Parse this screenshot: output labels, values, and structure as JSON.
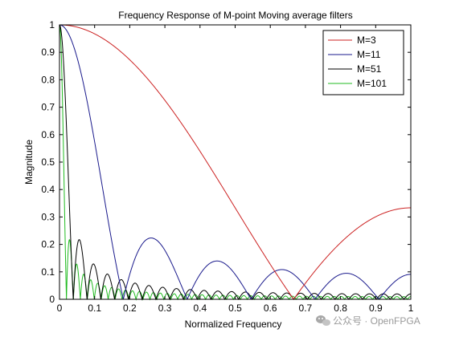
{
  "chart_data": {
    "type": "line",
    "title": "Frequency Response of M-point Moving average filters",
    "xlabel": "Normalized Frequency",
    "ylabel": "Magnitude",
    "xlim": [
      0,
      1
    ],
    "ylim": [
      0,
      1
    ],
    "xticks": [
      0,
      0.1,
      0.2,
      0.3,
      0.4,
      0.5,
      0.6,
      0.7,
      0.8,
      0.9,
      1
    ],
    "xtick_labels": [
      "0",
      "0.1",
      "0.2",
      "0.3",
      "0.4",
      "0.5",
      "0.6",
      "0.7",
      "0.8",
      "0.9",
      "1"
    ],
    "yticks": [
      0,
      0.1,
      0.2,
      0.3,
      0.4,
      0.5,
      0.6,
      0.7,
      0.8,
      0.9,
      1
    ],
    "ytick_labels": [
      "0",
      "0.1",
      "0.2",
      "0.3",
      "0.4",
      "0.5",
      "0.6",
      "0.7",
      "0.8",
      "0.9",
      "1"
    ],
    "grid": false,
    "legend_position": "top-right",
    "series": [
      {
        "name": "M=3",
        "M": 3,
        "color": "#cc2222",
        "x": [
          0,
          0.1,
          0.2,
          0.3,
          0.4,
          0.5,
          0.6,
          0.667,
          0.7,
          0.8,
          0.9,
          1
        ],
        "values": [
          1,
          0.97,
          0.87,
          0.73,
          0.54,
          0.33,
          0.13,
          0,
          0.06,
          0.21,
          0.3,
          0.33
        ]
      },
      {
        "name": "M=11",
        "M": 11,
        "color": "#1a1a8c",
        "x": [
          0,
          0.05,
          0.1,
          0.15,
          0.182,
          0.26,
          0.364,
          0.45,
          0.545,
          0.64,
          0.727,
          0.82,
          0.909,
          1
        ],
        "values": [
          1,
          0.88,
          0.57,
          0.18,
          0,
          0.22,
          0,
          0.14,
          0,
          0.1,
          0,
          0.095,
          0,
          0.091
        ]
      },
      {
        "name": "M=51",
        "M": 51,
        "color": "#000000",
        "x": [
          0,
          0.02,
          0.039,
          0.059,
          0.078,
          0.098,
          0.118,
          0.137,
          0.157,
          0.176,
          0.5,
          1
        ],
        "values": [
          1,
          0.42,
          0,
          0.22,
          0,
          0.13,
          0,
          0.1,
          0,
          0.07,
          0.02,
          0.0196
        ]
      },
      {
        "name": "M=101",
        "M": 101,
        "color": "#22bb22",
        "x": [
          0,
          0.01,
          0.02,
          0.03,
          0.04,
          0.05,
          0.06,
          0.08,
          0.1,
          0.5,
          1
        ],
        "values": [
          1,
          0.66,
          0,
          0.22,
          0,
          0.13,
          0,
          0,
          0,
          0.01,
          0.0099
        ]
      }
    ]
  },
  "watermark": {
    "text": "公众号 · OpenFPGA",
    "icon": "wechat-icon"
  }
}
